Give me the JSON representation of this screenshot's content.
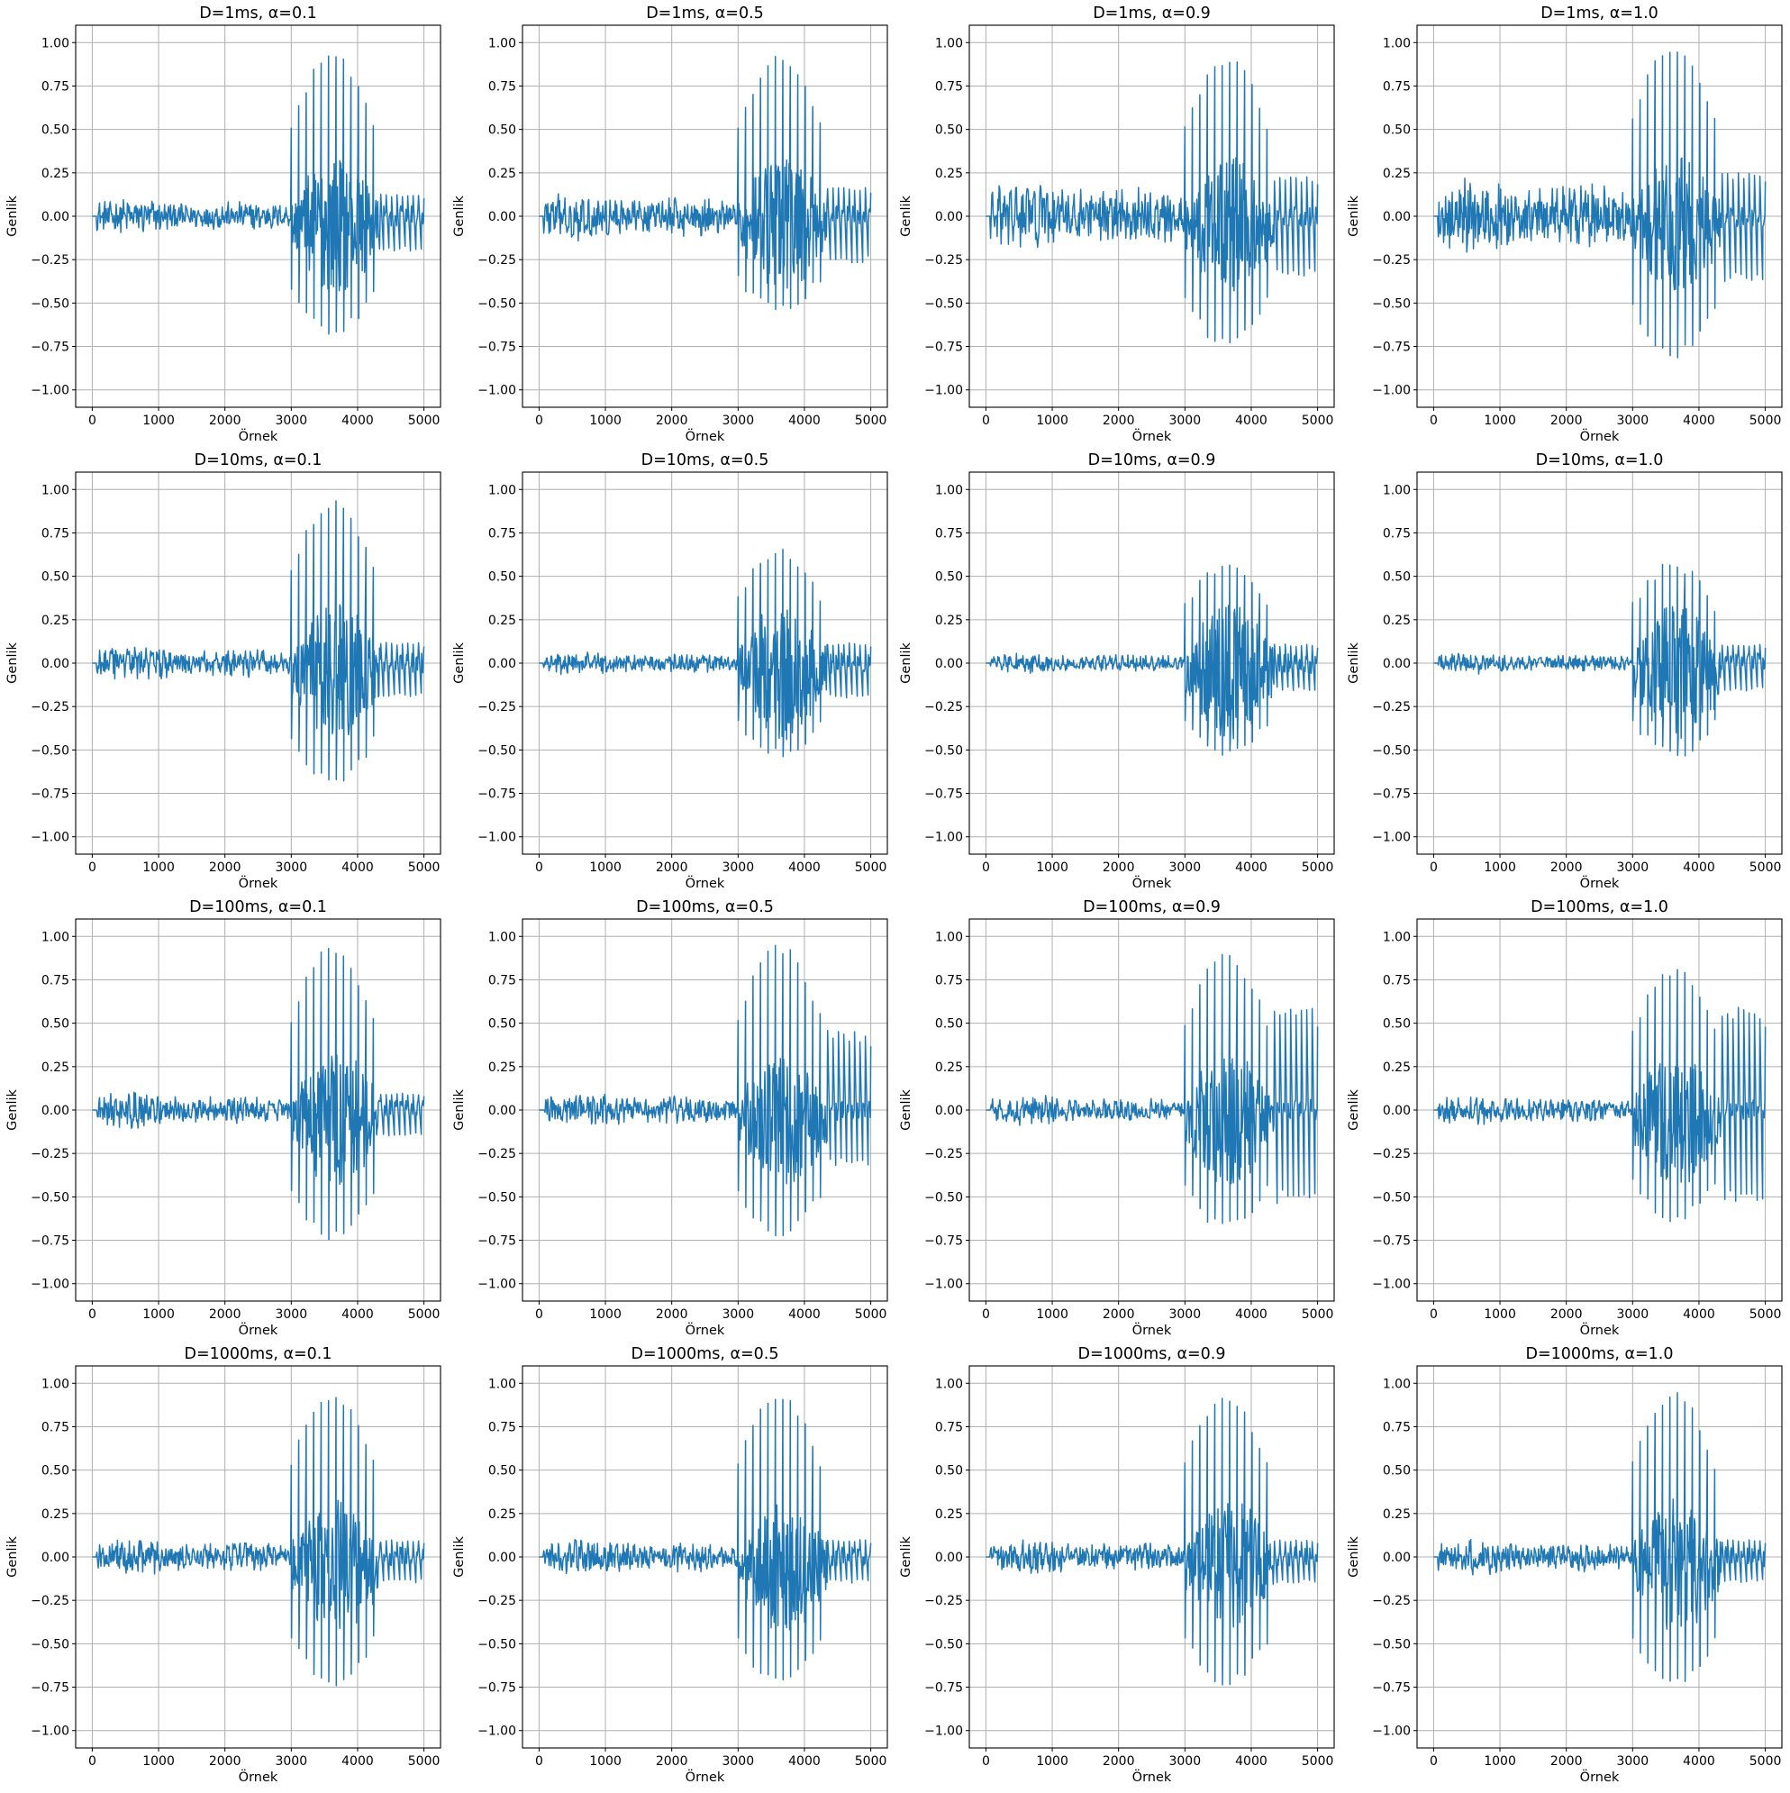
{
  "colors": {
    "series": "#1f77b4",
    "grid": "#b0b0b0",
    "axes": "#000000",
    "background": "#ffffff"
  },
  "chart_data": [
    {
      "type": "line",
      "title": "D=1ms, α=0.1",
      "D_ms": 1,
      "alpha": 0.1,
      "xlabel": "Örnek",
      "ylabel": "Genlik",
      "xlim": [
        -250,
        5250
      ],
      "ylim": [
        -1.1,
        1.1
      ],
      "grid": true,
      "series": [
        {
          "peak_max": 0.91,
          "peak_min": -0.66,
          "tail_max": 0.13,
          "tail_min": -0.2,
          "noise_amp": 0.06,
          "burst_start": 3000,
          "burst_end": 4350,
          "signal_end": 5000
        }
      ]
    },
    {
      "type": "line",
      "title": "D=1ms, α=0.5",
      "D_ms": 1,
      "alpha": 0.5,
      "xlabel": "Örnek",
      "ylabel": "Genlik",
      "xlim": [
        -250,
        5250
      ],
      "ylim": [
        -1.1,
        1.1
      ],
      "grid": true,
      "series": [
        {
          "peak_max": 0.9,
          "peak_min": -0.54,
          "tail_max": 0.17,
          "tail_min": -0.27,
          "noise_amp": 0.08,
          "burst_start": 3000,
          "burst_end": 4350,
          "signal_end": 5000
        }
      ]
    },
    {
      "type": "line",
      "title": "D=1ms, α=0.9",
      "D_ms": 1,
      "alpha": 0.9,
      "xlabel": "Örnek",
      "ylabel": "Genlik",
      "xlim": [
        -250,
        5250
      ],
      "ylim": [
        -1.1,
        1.1
      ],
      "grid": true,
      "series": [
        {
          "peak_max": 0.9,
          "peak_min": -0.73,
          "tail_max": 0.23,
          "tail_min": -0.35,
          "noise_amp": 0.12,
          "burst_start": 3000,
          "burst_end": 4350,
          "signal_end": 5000
        }
      ]
    },
    {
      "type": "line",
      "title": "D=1ms, α=1.0",
      "D_ms": 1,
      "alpha": 1.0,
      "xlabel": "Örnek",
      "ylabel": "Genlik",
      "xlim": [
        -250,
        5250
      ],
      "ylim": [
        -1.1,
        1.1
      ],
      "grid": true,
      "series": [
        {
          "peak_max": 0.97,
          "peak_min": -0.79,
          "tail_max": 0.25,
          "tail_min": -0.38,
          "noise_amp": 0.13,
          "burst_start": 3000,
          "burst_end": 4350,
          "signal_end": 5000
        }
      ]
    },
    {
      "type": "line",
      "title": "D=10ms, α=0.1",
      "D_ms": 10,
      "alpha": 0.1,
      "xlabel": "Örnek",
      "ylabel": "Genlik",
      "xlim": [
        -250,
        5250
      ],
      "ylim": [
        -1.1,
        1.1
      ],
      "grid": true,
      "series": [
        {
          "peak_max": 0.91,
          "peak_min": -0.68,
          "tail_max": 0.12,
          "tail_min": -0.2,
          "noise_amp": 0.06,
          "burst_start": 3000,
          "burst_end": 4350,
          "signal_end": 5000
        }
      ]
    },
    {
      "type": "line",
      "title": "D=10ms, α=0.5",
      "D_ms": 10,
      "alpha": 0.5,
      "xlabel": "Örnek",
      "ylabel": "Genlik",
      "xlim": [
        -250,
        5250
      ],
      "ylim": [
        -1.1,
        1.1
      ],
      "grid": true,
      "series": [
        {
          "peak_max": 0.64,
          "peak_min": -0.52,
          "tail_max": 0.12,
          "tail_min": -0.2,
          "noise_amp": 0.04,
          "burst_start": 3000,
          "burst_end": 4350,
          "signal_end": 5000
        }
      ]
    },
    {
      "type": "line",
      "title": "D=10ms, α=0.9",
      "D_ms": 10,
      "alpha": 0.9,
      "xlabel": "Örnek",
      "ylabel": "Genlik",
      "xlim": [
        -250,
        5250
      ],
      "ylim": [
        -1.1,
        1.1
      ],
      "grid": true,
      "series": [
        {
          "peak_max": 0.56,
          "peak_min": -0.52,
          "tail_max": 0.11,
          "tail_min": -0.16,
          "noise_amp": 0.035,
          "burst_start": 3000,
          "burst_end": 4350,
          "signal_end": 5000
        }
      ]
    },
    {
      "type": "line",
      "title": "D=10ms, α=1.0",
      "D_ms": 10,
      "alpha": 1.0,
      "xlabel": "Örnek",
      "ylabel": "Genlik",
      "xlim": [
        -250,
        5250
      ],
      "ylim": [
        -1.1,
        1.1
      ],
      "grid": true,
      "series": [
        {
          "peak_max": 0.56,
          "peak_min": -0.52,
          "tail_max": 0.11,
          "tail_min": -0.16,
          "noise_amp": 0.035,
          "burst_start": 3000,
          "burst_end": 4350,
          "signal_end": 5000
        }
      ]
    },
    {
      "type": "line",
      "title": "D=100ms, α=0.1",
      "D_ms": 100,
      "alpha": 0.1,
      "xlabel": "Örnek",
      "ylabel": "Genlik",
      "xlim": [
        -250,
        5250
      ],
      "ylim": [
        -1.1,
        1.1
      ],
      "grid": true,
      "series": [
        {
          "peak_max": 0.92,
          "peak_min": -0.72,
          "tail_max": 0.1,
          "tail_min": -0.15,
          "noise_amp": 0.06,
          "burst_start": 3000,
          "burst_end": 4350,
          "signal_end": 5000
        }
      ]
    },
    {
      "type": "line",
      "title": "D=100ms, α=0.5",
      "D_ms": 100,
      "alpha": 0.5,
      "xlabel": "Örnek",
      "ylabel": "Genlik",
      "xlim": [
        -250,
        5250
      ],
      "ylim": [
        -1.1,
        1.1
      ],
      "grid": true,
      "series": [
        {
          "peak_max": 0.93,
          "peak_min": -0.72,
          "tail_max": 0.46,
          "tail_min": -0.32,
          "noise_amp": 0.06,
          "burst_start": 3000,
          "burst_end": 4350,
          "signal_end": 5000
        }
      ]
    },
    {
      "type": "line",
      "title": "D=100ms, α=0.9",
      "D_ms": 100,
      "alpha": 0.9,
      "xlabel": "Örnek",
      "ylabel": "Genlik",
      "xlim": [
        -250,
        5250
      ],
      "ylim": [
        -1.1,
        1.1
      ],
      "grid": true,
      "series": [
        {
          "peak_max": 0.87,
          "peak_min": -0.67,
          "tail_max": 0.6,
          "tail_min": -0.54,
          "noise_amp": 0.05,
          "burst_start": 3000,
          "burst_end": 4350,
          "signal_end": 5000
        }
      ]
    },
    {
      "type": "line",
      "title": "D=100ms, α=1.0",
      "D_ms": 100,
      "alpha": 1.0,
      "xlabel": "Örnek",
      "ylabel": "Genlik",
      "xlim": [
        -250,
        5250
      ],
      "ylim": [
        -1.1,
        1.1
      ],
      "grid": true,
      "series": [
        {
          "peak_max": 0.8,
          "peak_min": -0.62,
          "tail_max": 0.6,
          "tail_min": -0.54,
          "noise_amp": 0.05,
          "burst_start": 3000,
          "burst_end": 4350,
          "signal_end": 5000
        }
      ]
    },
    {
      "type": "line",
      "title": "D=1000ms, α=0.1",
      "D_ms": 1000,
      "alpha": 0.1,
      "xlabel": "Örnek",
      "ylabel": "Genlik",
      "xlim": [
        -250,
        5250
      ],
      "ylim": [
        -1.1,
        1.1
      ],
      "grid": true,
      "series": [
        {
          "peak_max": 0.92,
          "peak_min": -0.72,
          "tail_max": 0.1,
          "tail_min": -0.15,
          "noise_amp": 0.06,
          "burst_start": 3000,
          "burst_end": 4350,
          "signal_end": 5000
        }
      ]
    },
    {
      "type": "line",
      "title": "D=1000ms, α=0.5",
      "D_ms": 1000,
      "alpha": 0.5,
      "xlabel": "Örnek",
      "ylabel": "Genlik",
      "xlim": [
        -250,
        5250
      ],
      "ylim": [
        -1.1,
        1.1
      ],
      "grid": true,
      "series": [
        {
          "peak_max": 0.92,
          "peak_min": -0.72,
          "tail_max": 0.1,
          "tail_min": -0.15,
          "noise_amp": 0.06,
          "burst_start": 3000,
          "burst_end": 4350,
          "signal_end": 5000
        }
      ]
    },
    {
      "type": "line",
      "title": "D=1000ms, α=0.9",
      "D_ms": 1000,
      "alpha": 0.9,
      "xlabel": "Örnek",
      "ylabel": "Genlik",
      "xlim": [
        -250,
        5250
      ],
      "ylim": [
        -1.1,
        1.1
      ],
      "grid": true,
      "series": [
        {
          "peak_max": 0.92,
          "peak_min": -0.72,
          "tail_max": 0.1,
          "tail_min": -0.15,
          "noise_amp": 0.06,
          "burst_start": 3000,
          "burst_end": 4350,
          "signal_end": 5000
        }
      ]
    },
    {
      "type": "line",
      "title": "D=1000ms, α=1.0",
      "D_ms": 1000,
      "alpha": 1.0,
      "xlabel": "Örnek",
      "ylabel": "Genlik",
      "xlim": [
        -250,
        5250
      ],
      "ylim": [
        -1.1,
        1.1
      ],
      "grid": true,
      "series": [
        {
          "peak_max": 0.92,
          "peak_min": -0.72,
          "tail_max": 0.1,
          "tail_min": -0.15,
          "noise_amp": 0.06,
          "burst_start": 3000,
          "burst_end": 4350,
          "signal_end": 5000
        }
      ]
    }
  ],
  "x_ticks": [
    0,
    1000,
    2000,
    3000,
    4000,
    5000
  ],
  "y_ticks": [
    -1.0,
    -0.75,
    -0.5,
    -0.25,
    0.0,
    0.25,
    0.5,
    0.75,
    1.0
  ],
  "y_tick_labels": [
    "−1.00",
    "−0.75",
    "−0.50",
    "−0.25",
    "0.00",
    "0.25",
    "0.50",
    "0.75",
    "1.00"
  ]
}
